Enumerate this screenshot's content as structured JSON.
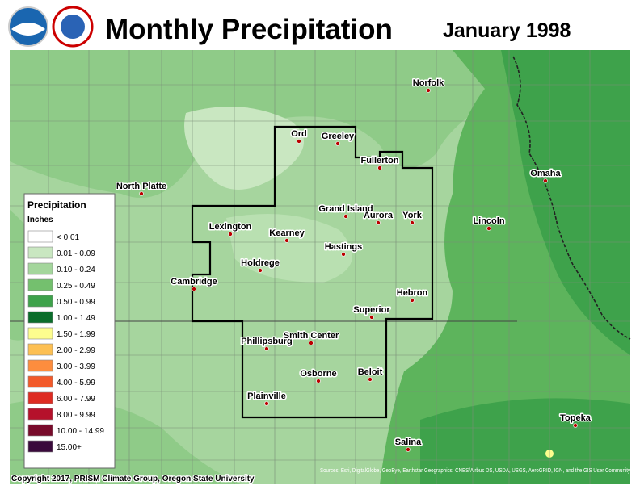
{
  "header": {
    "title": "Monthly Precipitation",
    "date": "January 1998"
  },
  "legend": {
    "title": "Precipitation",
    "units": "Inches",
    "items": [
      {
        "label": "< 0.01",
        "color": "#ffffff"
      },
      {
        "label": "0.01 - 0.09",
        "color": "#c9e7c1"
      },
      {
        "label": "0.10 - 0.24",
        "color": "#a4d69c"
      },
      {
        "label": "0.25 - 0.49",
        "color": "#74c06e"
      },
      {
        "label": "0.50 - 0.99",
        "color": "#3ea24b"
      },
      {
        "label": "1.00 - 1.49",
        "color": "#0b6d2b"
      },
      {
        "label": "1.50 - 1.99",
        "color": "#fdfd8e"
      },
      {
        "label": "2.00 - 2.99",
        "color": "#fdc053"
      },
      {
        "label": "3.00 - 3.99",
        "color": "#fd8d3e"
      },
      {
        "label": "4.00 - 5.99",
        "color": "#f25a2a"
      },
      {
        "label": "6.00 - 7.99",
        "color": "#de2b22"
      },
      {
        "label": "8.00 - 9.99",
        "color": "#b5112b"
      },
      {
        "label": "10.00 - 14.99",
        "color": "#780b2b"
      },
      {
        "label": "15.00+",
        "color": "#3a0a3c"
      }
    ]
  },
  "cities": [
    {
      "name": "Ord"
    },
    {
      "name": "Greeley"
    },
    {
      "name": "Fullerton"
    },
    {
      "name": "Norfolk"
    },
    {
      "name": "North Platte"
    },
    {
      "name": "Omaha"
    },
    {
      "name": "Grand Island"
    },
    {
      "name": "Aurora"
    },
    {
      "name": "York"
    },
    {
      "name": "Lincoln"
    },
    {
      "name": "Lexington"
    },
    {
      "name": "Kearney"
    },
    {
      "name": "Hastings"
    },
    {
      "name": "Holdrege"
    },
    {
      "name": "Cambridge"
    },
    {
      "name": "Hebron"
    },
    {
      "name": "Superior"
    },
    {
      "name": "Phillipsburg"
    },
    {
      "name": "Smith Center"
    },
    {
      "name": "Beloit"
    },
    {
      "name": "Osborne"
    },
    {
      "name": "Plainville"
    },
    {
      "name": "Salina"
    },
    {
      "name": "Topeka"
    }
  ],
  "footer": {
    "copyright": "Copyright 2017, PRISM Climate Group, Oregon State University",
    "sources": "Sources: Esri, DigitalGlobe, GeoEye, Earthstar Geographics, CNES/Airbus DS, USDA, USGS, AeroGRID, IGN, and the GIS User Community"
  }
}
